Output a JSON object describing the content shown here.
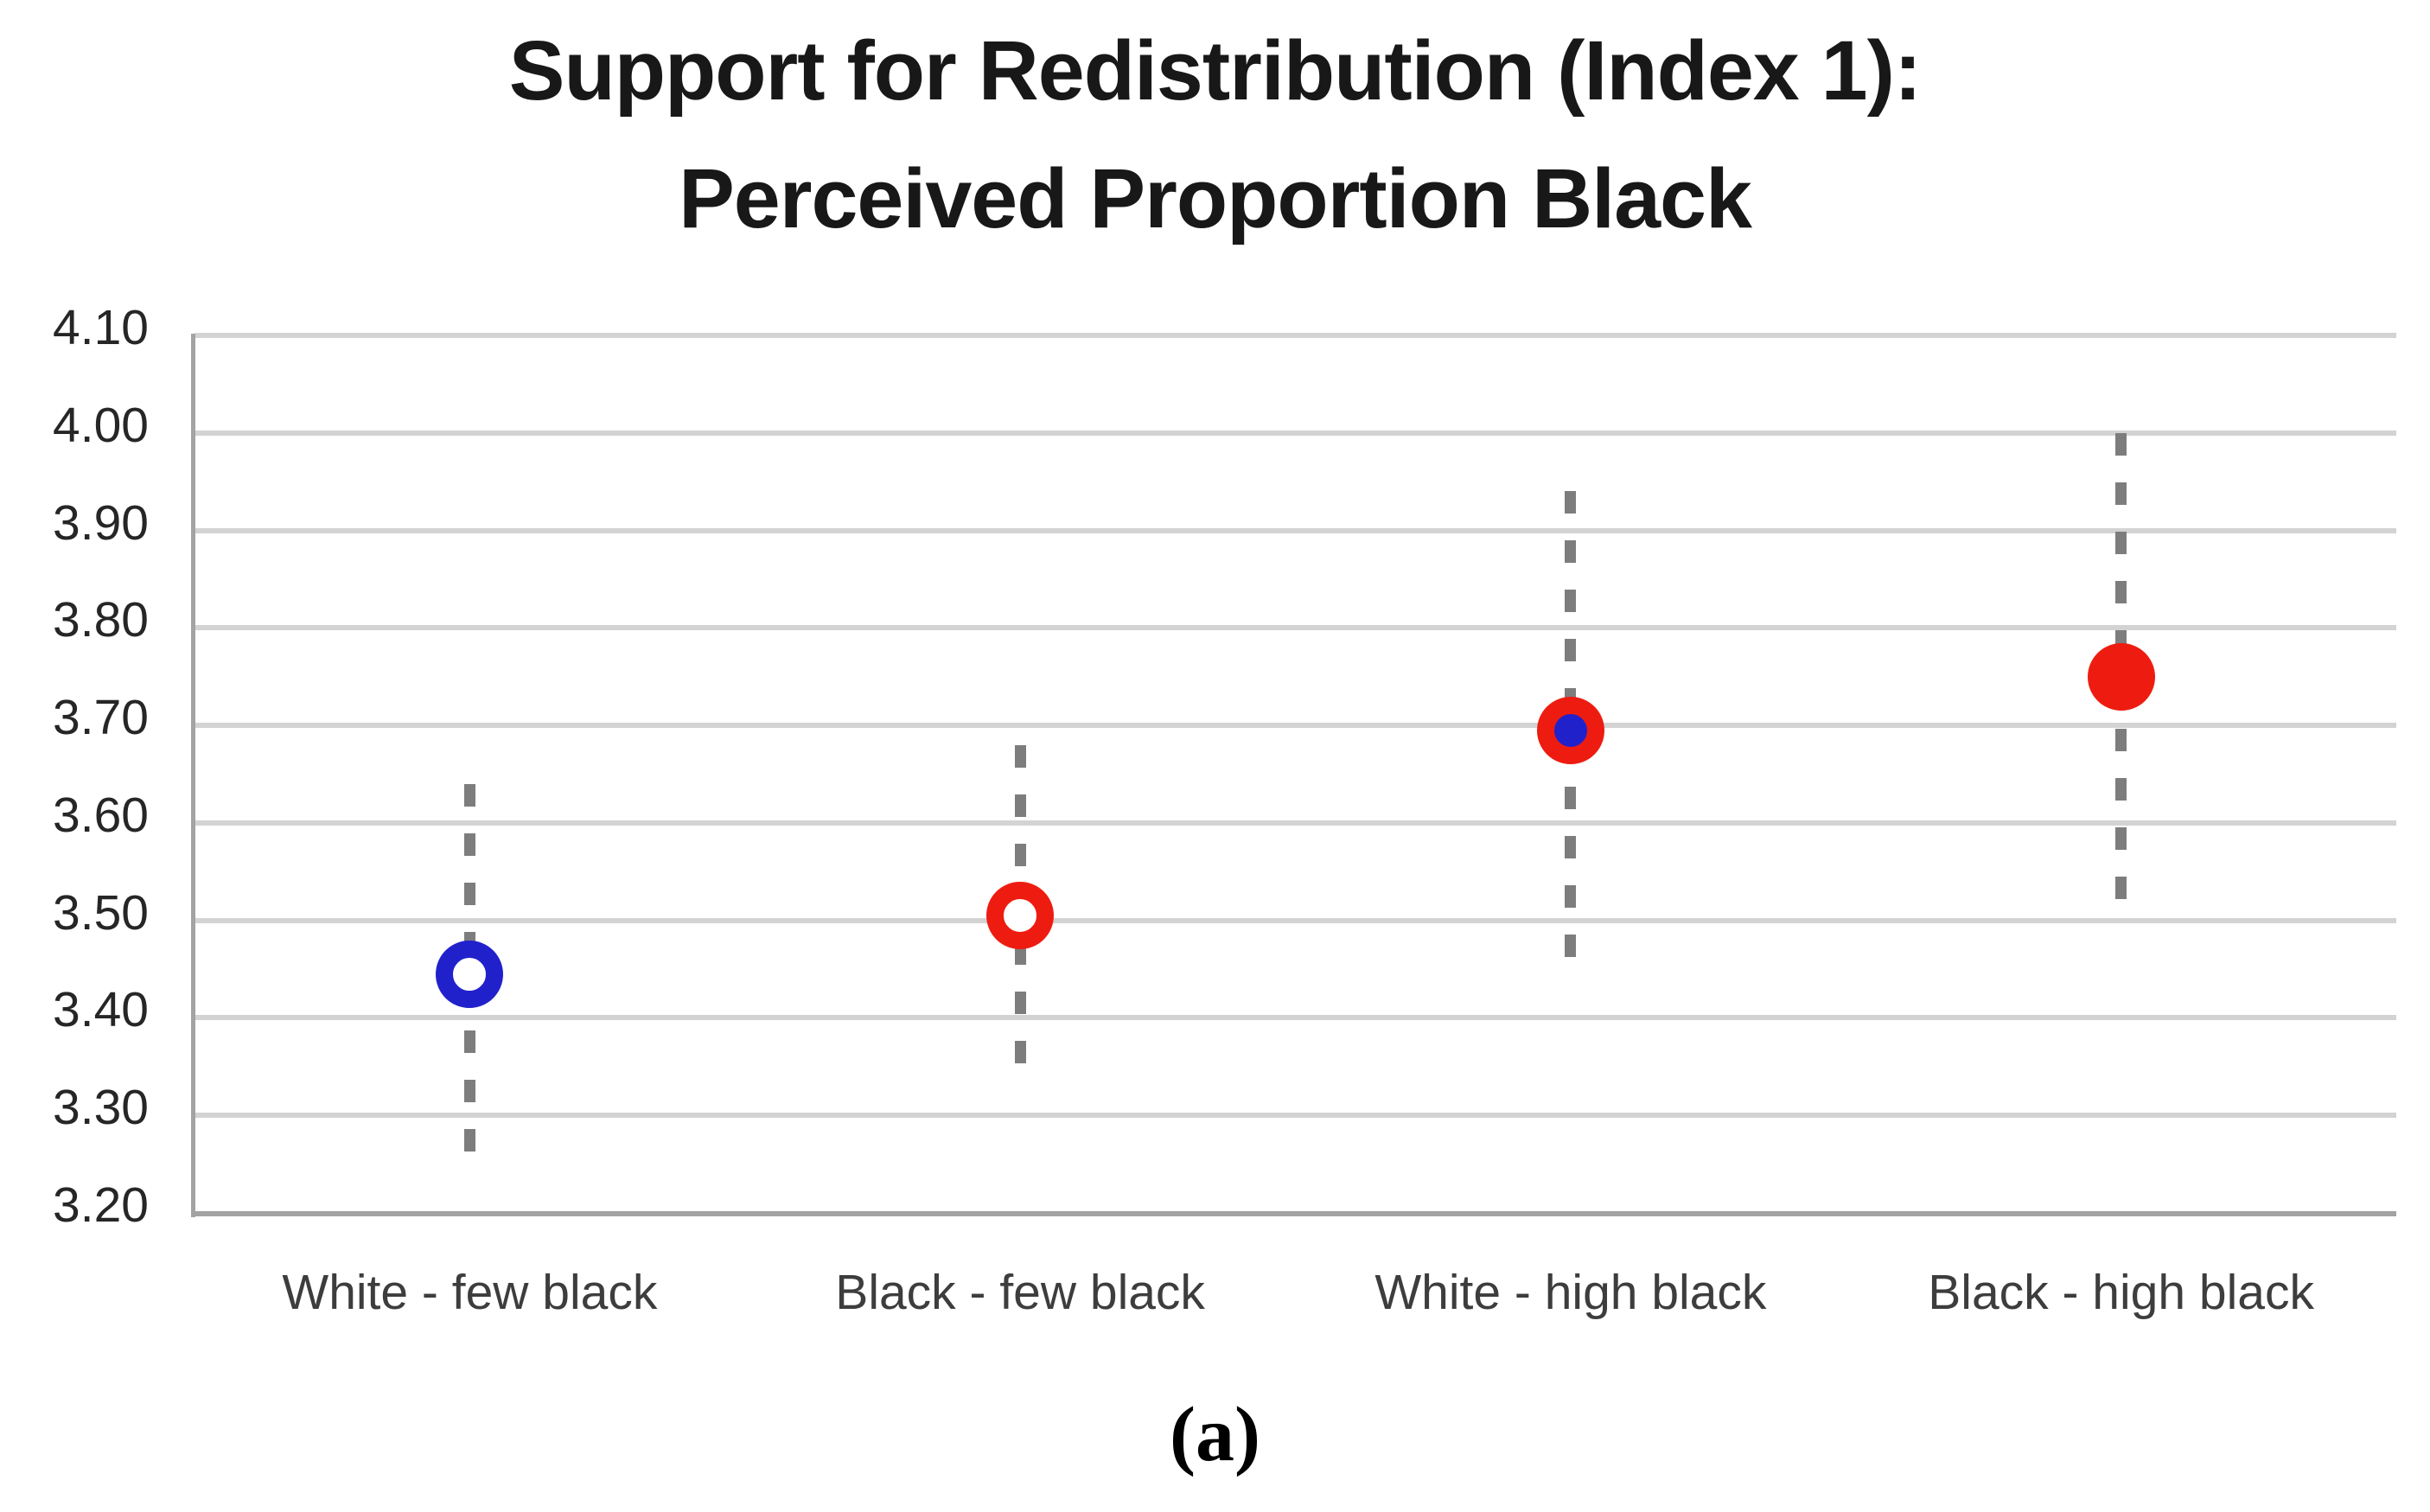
{
  "figure": {
    "subplot_label": "(a)"
  },
  "chart_data": {
    "type": "scatter",
    "title": "Support for Redistribution (Index 1): Perceived Proportion Black",
    "title_line1": "Support for Redistribution (Index 1):",
    "title_line2": "Perceived Proportion Black",
    "xlabel": "",
    "ylabel": "",
    "ylim": [
      3.2,
      4.1
    ],
    "ytick_step": 0.1,
    "yticks": [
      "4.10",
      "4.00",
      "3.90",
      "3.80",
      "3.70",
      "3.60",
      "3.50",
      "3.40",
      "3.30",
      "3.20"
    ],
    "grid": "horizontal",
    "legend": "none",
    "categories": [
      "White - few black",
      "Black - few black",
      "White - high black",
      "Black - high black"
    ],
    "points": [
      {
        "category": "White - few black",
        "mean": 3.445,
        "ci_low": 3.26,
        "ci_high": 3.64,
        "marker": "open-circle",
        "ring_color": "#2121cc",
        "fill_color": "#ffffff"
      },
      {
        "category": "Black - few black",
        "mean": 3.505,
        "ci_low": 3.33,
        "ci_high": 3.68,
        "marker": "open-circle",
        "ring_color": "#ee1c10",
        "fill_color": "#ffffff"
      },
      {
        "category": "White - high black",
        "mean": 3.695,
        "ci_low": 3.46,
        "ci_high": 3.94,
        "marker": "ring-dot",
        "ring_color": "#ee1c10",
        "fill_color": "#2121cc"
      },
      {
        "category": "Black - high black",
        "mean": 3.75,
        "ci_low": 3.51,
        "ci_high": 4.0,
        "marker": "filled-circle",
        "ring_color": "#ee1c10",
        "fill_color": "#ee1c10"
      }
    ],
    "colors": {
      "blue": "#2121cc",
      "red": "#ee1c10",
      "gridline": "#d3d3d3",
      "axis": "#a3a3a3",
      "error_bar": "#7d7d7d"
    }
  }
}
